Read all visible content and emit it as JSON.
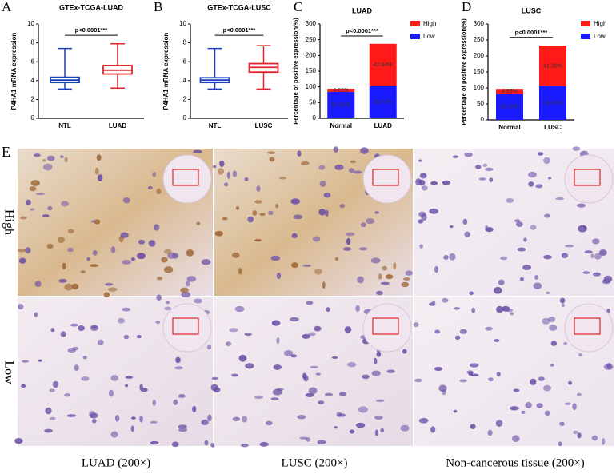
{
  "chart_data": [
    {
      "type": "box",
      "panel": "A",
      "title": "GTEx-TCGA-LUAD",
      "y_label": "P4HA1 mRNA expression",
      "categories": [
        "NTL",
        "LUAD"
      ],
      "boxes": [
        {
          "min": 3.1,
          "q1": 3.8,
          "median": 4.05,
          "q3": 4.35,
          "max": 7.4,
          "color": "#1f3fbf"
        },
        {
          "min": 3.2,
          "q1": 4.7,
          "median": 5.1,
          "q3": 5.6,
          "max": 7.9,
          "color": "#e0262b"
        }
      ],
      "annotation": "p<0.0001***",
      "annotation_y": 8.8,
      "ylim": [
        0,
        10
      ],
      "yticks": [
        0,
        2,
        4,
        6,
        8,
        10
      ]
    },
    {
      "type": "box",
      "panel": "B",
      "title": "GTEx-TCGA-LUSC",
      "y_label": "P4HA1 mRNA expression",
      "categories": [
        "NTL",
        "LUSC"
      ],
      "boxes": [
        {
          "min": 3.1,
          "q1": 3.8,
          "median": 4.05,
          "q3": 4.3,
          "max": 7.4,
          "color": "#1f3fbf"
        },
        {
          "min": 3.1,
          "q1": 4.9,
          "median": 5.4,
          "q3": 5.8,
          "max": 7.7,
          "color": "#e0262b"
        }
      ],
      "annotation": "p<0.0001***",
      "annotation_y": 8.8,
      "ylim": [
        0,
        10
      ],
      "yticks": [
        0,
        2,
        4,
        6,
        8,
        10
      ]
    },
    {
      "type": "stacked_bar",
      "panel": "C",
      "title": "LUAD",
      "y_label": "Percentage of positive expression(%)",
      "categories": [
        "Normal",
        "LUAD"
      ],
      "series": [
        {
          "name": "Low",
          "color": "#1a1aff",
          "values": [
            84,
            102
          ],
          "labels": [
            "52.82%",
            "28.73%"
          ]
        },
        {
          "name": "High",
          "color": "#ff1a1a",
          "values": [
            10,
            135
          ],
          "labels": [
            "4.60%",
            "42.64%"
          ]
        }
      ],
      "legend_series_order": [
        1,
        0
      ],
      "legend": "top-right",
      "annotation": "p<0.0001***",
      "annotation_y": 262,
      "ylim": [
        0,
        300
      ],
      "yticks": [
        0,
        50,
        100,
        150,
        200,
        250,
        300
      ]
    },
    {
      "type": "stacked_bar",
      "panel": "D",
      "title": "LUSC",
      "y_label": "Percentage of positive expression(%)",
      "categories": [
        "Normal",
        "LUSC"
      ],
      "series": [
        {
          "name": "Low",
          "color": "#1a1aff",
          "values": [
            82,
            105
          ],
          "labels": [
            "52.04%",
            "33.67%"
          ]
        },
        {
          "name": "High",
          "color": "#ff1a1a",
          "values": [
            15,
            127
          ],
          "labels": [
            "4.63%",
            "41.30%"
          ]
        }
      ],
      "legend_series_order": [
        1,
        0
      ],
      "legend": "top-right",
      "annotation": "p<0.0001***",
      "annotation_y": 258,
      "ylim": [
        0,
        300
      ],
      "yticks": [
        0,
        50,
        100,
        150,
        200,
        250,
        300
      ]
    }
  ],
  "histology": {
    "panel": "E",
    "rows": [
      "High",
      "Low"
    ],
    "captions": [
      "LUAD (200×)",
      "LUSC (200×)",
      "Non-cancerous tissue (200×)"
    ]
  }
}
